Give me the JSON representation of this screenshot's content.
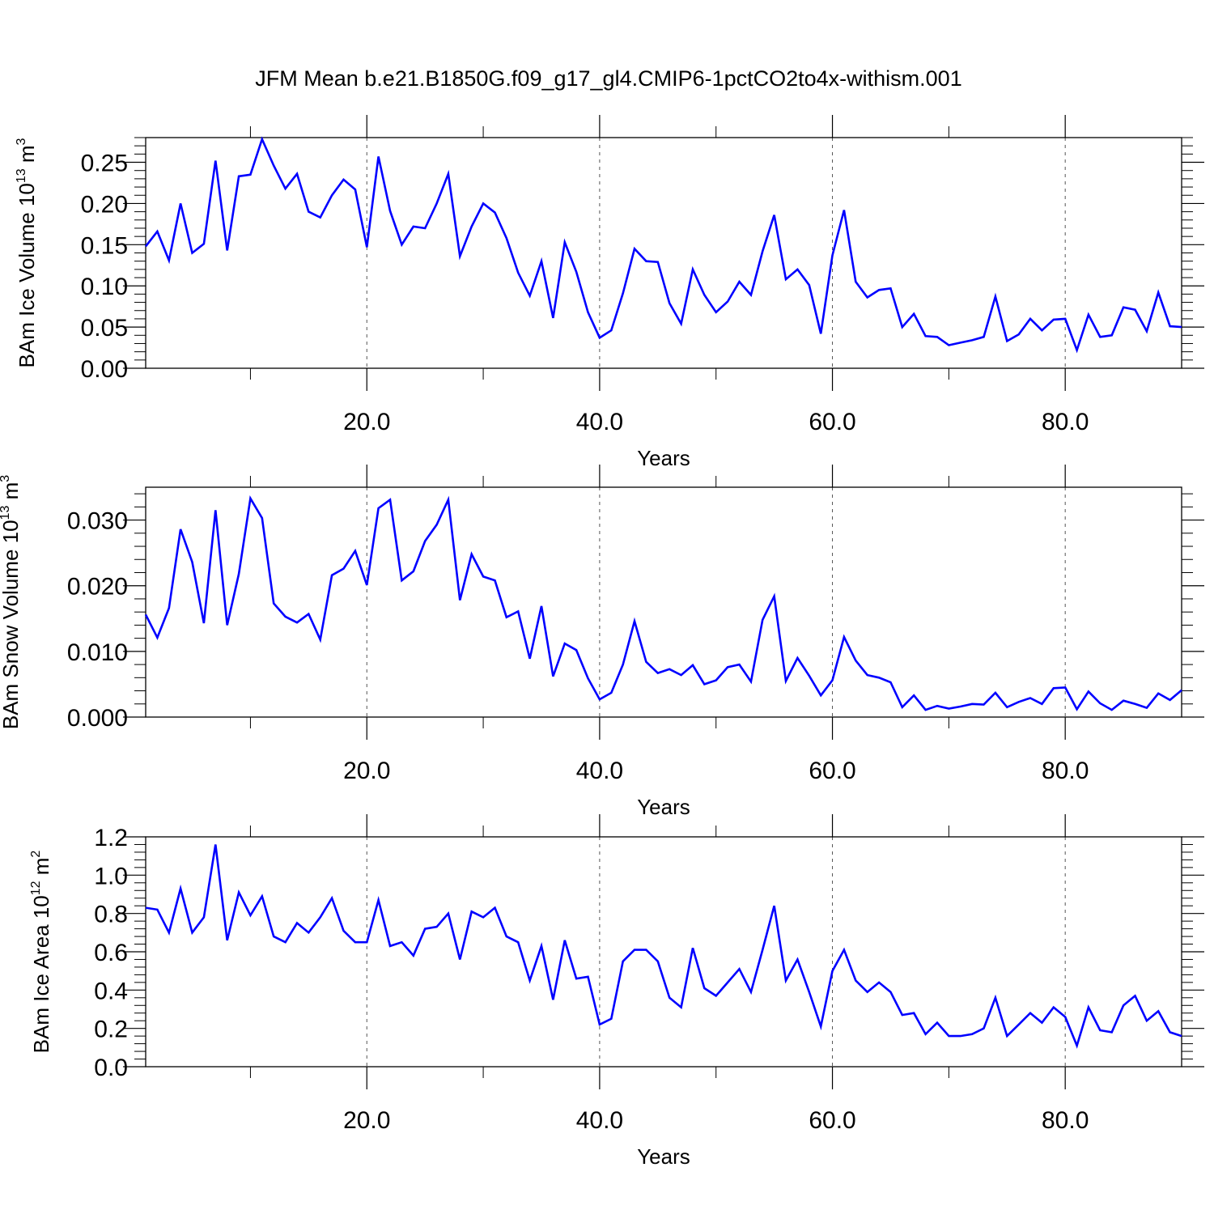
{
  "title": "JFM Mean b.e21.B1850G.f09_g17_gl4.CMIP6-1pctCO2to4x-withism.001",
  "chart_data": [
    {
      "type": "line",
      "xlabel": "Years",
      "ylabel_text": "BAm Ice Volume 10",
      "ylabel_exp": "13",
      "ylabel_unit": " m",
      "ylabel_unit_exp": "3",
      "xlim": [
        1,
        90
      ],
      "ylim": [
        0,
        0.28
      ],
      "xticks": [
        20,
        40,
        60,
        80
      ],
      "xtick_labels": [
        "20.0",
        "40.0",
        "60.0",
        "80.0"
      ],
      "yticks": [
        0,
        0.05,
        0.1,
        0.15,
        0.2,
        0.25
      ],
      "ytick_labels": [
        "0.00",
        "0.05",
        "0.10",
        "0.15",
        "0.20",
        "0.25"
      ],
      "vgrid": "dashed at major x ticks",
      "line_color": "#0000ff",
      "x": [
        1,
        2,
        3,
        4,
        5,
        6,
        7,
        8,
        9,
        10,
        11,
        12,
        13,
        14,
        15,
        16,
        17,
        18,
        19,
        20,
        21,
        22,
        23,
        24,
        25,
        26,
        27,
        28,
        29,
        30,
        31,
        32,
        33,
        34,
        35,
        36,
        37,
        38,
        39,
        40,
        41,
        42,
        43,
        44,
        45,
        46,
        47,
        48,
        49,
        50,
        51,
        52,
        53,
        54,
        55,
        56,
        57,
        58,
        59,
        60,
        61,
        62,
        63,
        64,
        65,
        66,
        67,
        68,
        69,
        70,
        71,
        72,
        73,
        74,
        75,
        76,
        77,
        78,
        79,
        80,
        81,
        82,
        83,
        84,
        85,
        86,
        87,
        88,
        89,
        90
      ],
      "y": [
        0.148,
        0.166,
        0.131,
        0.2,
        0.14,
        0.151,
        0.252,
        0.143,
        0.233,
        0.235,
        0.278,
        0.246,
        0.218,
        0.236,
        0.19,
        0.183,
        0.21,
        0.229,
        0.217,
        0.147,
        0.257,
        0.191,
        0.15,
        0.172,
        0.17,
        0.2,
        0.236,
        0.136,
        0.172,
        0.2,
        0.189,
        0.158,
        0.116,
        0.088,
        0.13,
        0.061,
        0.153,
        0.117,
        0.068,
        0.037,
        0.046,
        0.091,
        0.145,
        0.13,
        0.129,
        0.079,
        0.054,
        0.12,
        0.089,
        0.068,
        0.081,
        0.105,
        0.089,
        0.142,
        0.186,
        0.108,
        0.12,
        0.101,
        0.042,
        0.137,
        0.192,
        0.105,
        0.086,
        0.095,
        0.097,
        0.05,
        0.066,
        0.039,
        0.038,
        0.028,
        0.031,
        0.034,
        0.038,
        0.087,
        0.033,
        0.041,
        0.06,
        0.046,
        0.059,
        0.06,
        0.022,
        0.065,
        0.038,
        0.04,
        0.074,
        0.071,
        0.045,
        0.092,
        0.051,
        0.05
      ]
    },
    {
      "type": "line",
      "xlabel": "Years",
      "ylabel_text": "BAm Snow Volume 10",
      "ylabel_exp": "13",
      "ylabel_unit": " m",
      "ylabel_unit_exp": "3",
      "xlim": [
        1,
        90
      ],
      "ylim": [
        0,
        0.035
      ],
      "xticks": [
        20,
        40,
        60,
        80
      ],
      "xtick_labels": [
        "20.0",
        "40.0",
        "60.0",
        "80.0"
      ],
      "yticks": [
        0,
        0.01,
        0.02,
        0.03
      ],
      "ytick_labels": [
        "0.000",
        "0.010",
        "0.020",
        "0.030"
      ],
      "vgrid": "dashed at major x ticks",
      "line_color": "#0000ff",
      "x": [
        1,
        2,
        3,
        4,
        5,
        6,
        7,
        8,
        9,
        10,
        11,
        12,
        13,
        14,
        15,
        16,
        17,
        18,
        19,
        20,
        21,
        22,
        23,
        24,
        25,
        26,
        27,
        28,
        29,
        30,
        31,
        32,
        33,
        34,
        35,
        36,
        37,
        38,
        39,
        40,
        41,
        42,
        43,
        44,
        45,
        46,
        47,
        48,
        49,
        50,
        51,
        52,
        53,
        54,
        55,
        56,
        57,
        58,
        59,
        60,
        61,
        62,
        63,
        64,
        65,
        66,
        67,
        68,
        69,
        70,
        71,
        72,
        73,
        74,
        75,
        76,
        77,
        78,
        79,
        80,
        81,
        82,
        83,
        84,
        85,
        86,
        87,
        88,
        89,
        90
      ],
      "y": [
        0.0156,
        0.0121,
        0.0166,
        0.0286,
        0.0236,
        0.0143,
        0.0315,
        0.014,
        0.0218,
        0.0333,
        0.0303,
        0.0173,
        0.0153,
        0.0144,
        0.0157,
        0.0118,
        0.0216,
        0.0226,
        0.0253,
        0.0201,
        0.0318,
        0.0331,
        0.0208,
        0.0222,
        0.0268,
        0.0293,
        0.0331,
        0.0178,
        0.0248,
        0.0214,
        0.0208,
        0.0152,
        0.0161,
        0.0089,
        0.0169,
        0.0062,
        0.0112,
        0.0102,
        0.0059,
        0.0027,
        0.0037,
        0.008,
        0.0146,
        0.0084,
        0.0067,
        0.0073,
        0.0064,
        0.0079,
        0.005,
        0.0056,
        0.0076,
        0.008,
        0.0054,
        0.0148,
        0.0184,
        0.0055,
        0.009,
        0.0063,
        0.0033,
        0.0056,
        0.0122,
        0.0086,
        0.0064,
        0.006,
        0.0053,
        0.0015,
        0.0033,
        0.0011,
        0.0017,
        0.0013,
        0.0016,
        0.002,
        0.0019,
        0.0037,
        0.0015,
        0.0023,
        0.0029,
        0.002,
        0.0044,
        0.0045,
        0.0012,
        0.0039,
        0.0021,
        0.0011,
        0.0025,
        0.002,
        0.0014,
        0.0036,
        0.0026,
        0.0041
      ]
    },
    {
      "type": "line",
      "xlabel": "Years",
      "ylabel_text": "BAm Ice Area 10",
      "ylabel_exp": "12",
      "ylabel_unit": " m",
      "ylabel_unit_exp": "2",
      "xlim": [
        1,
        90
      ],
      "ylim": [
        0,
        1.2
      ],
      "xticks": [
        20,
        40,
        60,
        80
      ],
      "xtick_labels": [
        "20.0",
        "40.0",
        "60.0",
        "80.0"
      ],
      "yticks": [
        0,
        0.2,
        0.4,
        0.6,
        0.8,
        1.0,
        1.2
      ],
      "ytick_labels": [
        "0.0",
        "0.2",
        "0.4",
        "0.6",
        "0.8",
        "1.0",
        "1.2"
      ],
      "vgrid": "dashed at major x ticks",
      "line_color": "#0000ff",
      "x": [
        1,
        2,
        3,
        4,
        5,
        6,
        7,
        8,
        9,
        10,
        11,
        12,
        13,
        14,
        15,
        16,
        17,
        18,
        19,
        20,
        21,
        22,
        23,
        24,
        25,
        26,
        27,
        28,
        29,
        30,
        31,
        32,
        33,
        34,
        35,
        36,
        37,
        38,
        39,
        40,
        41,
        42,
        43,
        44,
        45,
        46,
        47,
        48,
        49,
        50,
        51,
        52,
        53,
        54,
        55,
        56,
        57,
        58,
        59,
        60,
        61,
        62,
        63,
        64,
        65,
        66,
        67,
        68,
        69,
        70,
        71,
        72,
        73,
        74,
        75,
        76,
        77,
        78,
        79,
        80,
        81,
        82,
        83,
        84,
        85,
        86,
        87,
        88,
        89,
        90
      ],
      "y": [
        0.83,
        0.82,
        0.7,
        0.93,
        0.7,
        0.78,
        1.16,
        0.66,
        0.91,
        0.79,
        0.89,
        0.68,
        0.65,
        0.75,
        0.7,
        0.78,
        0.88,
        0.71,
        0.65,
        0.65,
        0.87,
        0.63,
        0.65,
        0.58,
        0.72,
        0.73,
        0.8,
        0.56,
        0.81,
        0.78,
        0.83,
        0.68,
        0.65,
        0.45,
        0.63,
        0.35,
        0.66,
        0.46,
        0.47,
        0.22,
        0.25,
        0.55,
        0.61,
        0.61,
        0.55,
        0.36,
        0.31,
        0.62,
        0.41,
        0.37,
        0.44,
        0.51,
        0.39,
        0.61,
        0.84,
        0.45,
        0.56,
        0.39,
        0.21,
        0.5,
        0.61,
        0.45,
        0.39,
        0.44,
        0.39,
        0.27,
        0.28,
        0.17,
        0.23,
        0.16,
        0.16,
        0.17,
        0.2,
        0.36,
        0.16,
        0.22,
        0.28,
        0.23,
        0.31,
        0.26,
        0.11,
        0.31,
        0.19,
        0.18,
        0.32,
        0.37,
        0.24,
        0.29,
        0.18,
        0.16
      ]
    }
  ]
}
